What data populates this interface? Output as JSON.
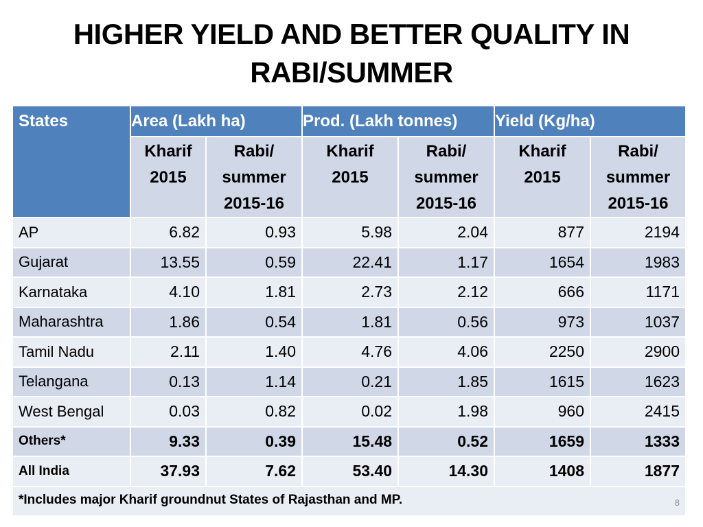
{
  "title": {
    "line1": "HIGHER YIELD AND BETTER QUALITY IN",
    "line2": "RABI/SUMMER"
  },
  "table": {
    "header": {
      "states": "States",
      "groups": [
        "Area (Lakh ha)",
        "Prod. (Lakh tonnes)",
        "Yield (Kg/ha)"
      ],
      "kharif": [
        "Kharif",
        "2015"
      ],
      "rabi": [
        "Rabi/",
        "summer",
        "2015-16"
      ]
    },
    "rows": [
      {
        "state": "AP",
        "values": [
          "6.82",
          "0.93",
          "5.98",
          "2.04",
          "877",
          "2194"
        ]
      },
      {
        "state": "Gujarat",
        "values": [
          "13.55",
          "0.59",
          "22.41",
          "1.17",
          "1654",
          "1983"
        ]
      },
      {
        "state": "Karnataka",
        "values": [
          "4.10",
          "1.81",
          "2.73",
          "2.12",
          "666",
          "1171"
        ]
      },
      {
        "state": "Maharashtra",
        "values": [
          "1.86",
          "0.54",
          "1.81",
          "0.56",
          "973",
          "1037"
        ]
      },
      {
        "state": "Tamil Nadu",
        "values": [
          "2.11",
          "1.40",
          "4.76",
          "4.06",
          "2250",
          "2900"
        ]
      },
      {
        "state": "Telangana",
        "values": [
          "0.13",
          "1.14",
          "0.21",
          "1.85",
          "1615",
          "1623"
        ]
      },
      {
        "state": "West Bengal",
        "values": [
          "0.03",
          "0.82",
          "0.02",
          "1.98",
          "960",
          "2415"
        ]
      },
      {
        "state": "Others*",
        "values": [
          "9.33",
          "0.39",
          "15.48",
          "0.52",
          "1659",
          "1333"
        ]
      },
      {
        "state": "All India",
        "values": [
          "37.93",
          "7.62",
          "53.40",
          "14.30",
          "1408",
          "1877"
        ]
      }
    ],
    "footnote": "*Includes major Kharif groundnut States of Rajasthan and MP."
  },
  "page_number": "8"
}
